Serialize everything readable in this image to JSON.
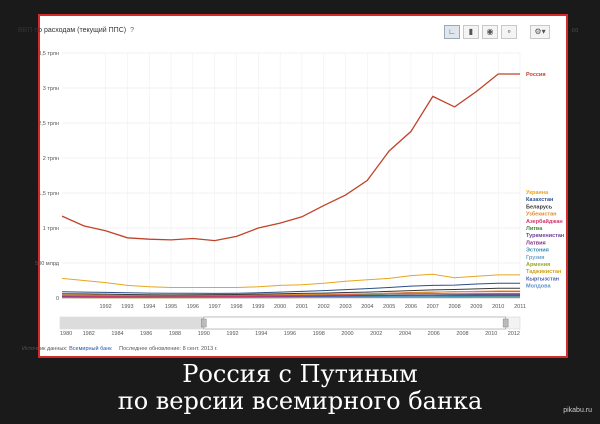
{
  "chart_data": {
    "type": "line",
    "title": "ВВП по расходам (текущий ППС)",
    "help_mark": "?",
    "x": [
      1990,
      1991,
      1992,
      1993,
      1994,
      1995,
      1996,
      1997,
      1998,
      1999,
      2000,
      2001,
      2002,
      2003,
      2004,
      2005,
      2006,
      2007,
      2008,
      2009,
      2010,
      2011
    ],
    "xlim": [
      1990,
      2011
    ],
    "ylim": [
      0,
      3.5
    ],
    "yticks": [
      {
        "value": 0,
        "label": "0"
      },
      {
        "value": 0.5,
        "label": "500 млрд"
      },
      {
        "value": 1,
        "label": "1 трлн"
      },
      {
        "value": 1.5,
        "label": "1,5 трлн"
      },
      {
        "value": 2,
        "label": "2 трлн"
      },
      {
        "value": 2.5,
        "label": "2,5 трлн"
      },
      {
        "value": 3,
        "label": "3 трлн"
      },
      {
        "value": 3.5,
        "label": "3,5 трлн"
      }
    ],
    "xtick_labels": [
      "1992",
      "1993",
      "1994",
      "1995",
      "1996",
      "1997",
      "1998",
      "1999",
      "2000",
      "2001",
      "2002",
      "2003",
      "2004",
      "2005",
      "2006",
      "2007",
      "2008",
      "2009",
      "2010",
      "2011"
    ],
    "grid": true,
    "legend_position": "right",
    "series": [
      {
        "name": "Россия",
        "color": "#c0432a",
        "values": [
          1.17,
          1.03,
          0.96,
          0.86,
          0.84,
          0.83,
          0.85,
          0.82,
          0.88,
          1.0,
          1.07,
          1.16,
          1.32,
          1.47,
          1.68,
          2.1,
          2.38,
          2.88,
          2.73,
          2.95,
          3.2,
          3.2
        ]
      },
      {
        "name": "Украина",
        "color": "#e8a51e",
        "values": [
          0.28,
          0.25,
          0.22,
          0.18,
          0.16,
          0.15,
          0.15,
          0.15,
          0.15,
          0.16,
          0.18,
          0.19,
          0.21,
          0.24,
          0.26,
          0.28,
          0.32,
          0.34,
          0.29,
          0.31,
          0.33,
          0.33
        ]
      },
      {
        "name": "Казахстан",
        "color": "#2b4f8a",
        "values": [
          0.09,
          0.085,
          0.08,
          0.075,
          0.07,
          0.068,
          0.067,
          0.066,
          0.067,
          0.075,
          0.085,
          0.095,
          0.105,
          0.12,
          0.135,
          0.15,
          0.17,
          0.18,
          0.185,
          0.2,
          0.21,
          0.21
        ]
      },
      {
        "name": "Беларусь",
        "color": "#3a3a3a",
        "values": [
          0.06,
          0.058,
          0.055,
          0.05,
          0.046,
          0.045,
          0.046,
          0.048,
          0.05,
          0.055,
          0.06,
          0.065,
          0.07,
          0.078,
          0.085,
          0.095,
          0.105,
          0.115,
          0.122,
          0.13,
          0.14,
          0.14
        ]
      },
      {
        "name": "Узбекистан",
        "color": "#e38b2c",
        "values": [
          0.045,
          0.044,
          0.042,
          0.04,
          0.04,
          0.04,
          0.041,
          0.042,
          0.044,
          0.046,
          0.048,
          0.05,
          0.053,
          0.057,
          0.062,
          0.068,
          0.075,
          0.083,
          0.088,
          0.095,
          0.1,
          0.1
        ]
      },
      {
        "name": "Азербайджан",
        "color": "#d0386e",
        "values": [
          0.03,
          0.026,
          0.022,
          0.02,
          0.018,
          0.018,
          0.019,
          0.02,
          0.022,
          0.025,
          0.028,
          0.032,
          0.038,
          0.047,
          0.058,
          0.068,
          0.078,
          0.085,
          0.088,
          0.09,
          0.092,
          0.092
        ]
      },
      {
        "name": "Литва",
        "color": "#3c8c3c",
        "values": [
          0.035,
          0.032,
          0.03,
          0.028,
          0.028,
          0.029,
          0.03,
          0.032,
          0.034,
          0.036,
          0.038,
          0.04,
          0.044,
          0.048,
          0.052,
          0.058,
          0.062,
          0.063,
          0.058,
          0.06,
          0.063,
          0.063
        ]
      },
      {
        "name": "Туркменистан",
        "color": "#6a3d9a",
        "values": [
          0.02,
          0.019,
          0.018,
          0.017,
          0.016,
          0.016,
          0.017,
          0.018,
          0.019,
          0.02,
          0.022,
          0.024,
          0.027,
          0.03,
          0.033,
          0.036,
          0.04,
          0.043,
          0.047,
          0.05,
          0.052,
          0.052
        ]
      },
      {
        "name": "Латвия",
        "color": "#8a2c8a",
        "values": [
          0.024,
          0.021,
          0.019,
          0.018,
          0.018,
          0.019,
          0.02,
          0.021,
          0.022,
          0.024,
          0.026,
          0.028,
          0.031,
          0.034,
          0.037,
          0.04,
          0.042,
          0.041,
          0.037,
          0.037,
          0.039,
          0.039
        ]
      },
      {
        "name": "Эстония",
        "color": "#2f8fb8",
        "values": [
          0.014,
          0.013,
          0.012,
          0.012,
          0.012,
          0.013,
          0.014,
          0.015,
          0.016,
          0.017,
          0.018,
          0.02,
          0.022,
          0.024,
          0.026,
          0.029,
          0.03,
          0.03,
          0.026,
          0.027,
          0.029,
          0.029
        ]
      },
      {
        "name": "Грузия",
        "color": "#6f9fc8",
        "values": [
          0.012,
          0.009,
          0.007,
          0.007,
          0.007,
          0.008,
          0.009,
          0.009,
          0.01,
          0.011,
          0.012,
          0.013,
          0.014,
          0.016,
          0.018,
          0.02,
          0.022,
          0.023,
          0.023,
          0.024,
          0.026,
          0.026
        ]
      },
      {
        "name": "Армения",
        "color": "#9aa82a",
        "values": [
          0.007,
          0.006,
          0.006,
          0.006,
          0.006,
          0.007,
          0.007,
          0.008,
          0.008,
          0.009,
          0.01,
          0.011,
          0.012,
          0.013,
          0.015,
          0.017,
          0.019,
          0.018,
          0.017,
          0.018,
          0.019,
          0.019
        ]
      },
      {
        "name": "Таджикистан",
        "color": "#d4a017",
        "values": [
          0.006,
          0.005,
          0.004,
          0.004,
          0.004,
          0.004,
          0.004,
          0.004,
          0.005,
          0.005,
          0.006,
          0.006,
          0.007,
          0.008,
          0.009,
          0.01,
          0.011,
          0.012,
          0.013,
          0.014,
          0.015,
          0.015
        ]
      },
      {
        "name": "Кыргызстан",
        "color": "#4c5fb0",
        "values": [
          0.006,
          0.005,
          0.005,
          0.005,
          0.005,
          0.005,
          0.005,
          0.005,
          0.006,
          0.006,
          0.006,
          0.007,
          0.007,
          0.008,
          0.009,
          0.01,
          0.011,
          0.012,
          0.012,
          0.013,
          0.013,
          0.013
        ]
      },
      {
        "name": "Молдова",
        "color": "#5a8fcf",
        "values": [
          0.008,
          0.006,
          0.005,
          0.005,
          0.005,
          0.005,
          0.005,
          0.005,
          0.005,
          0.006,
          0.006,
          0.007,
          0.008,
          0.008,
          0.009,
          0.01,
          0.011,
          0.011,
          0.011,
          0.012,
          0.012,
          0.012
        ]
      }
    ],
    "range_selector": {
      "labels": [
        "1980",
        "1982",
        "1984",
        "1986",
        "1988",
        "1990",
        "1992",
        "1994",
        "1996",
        "1998",
        "2000",
        "2002",
        "2004",
        "2006",
        "2008",
        "2010",
        "2012"
      ],
      "selected_from": 1990,
      "selected_to": 2011
    }
  },
  "toolbar": {
    "icons": [
      "line-chart-icon",
      "bar-chart-icon",
      "map-icon",
      "bubble-icon",
      "gear-icon",
      "more-icon"
    ]
  },
  "footer": {
    "source_prefix": "Источник данных:",
    "source_link": "Всемирный банк",
    "updated": "Последнее обновление: 8 сент. 2013 г."
  },
  "caption": {
    "line1": "Россия с Путиным",
    "line2": "по версии всемирного банка"
  },
  "watermark": "pikabu.ru"
}
